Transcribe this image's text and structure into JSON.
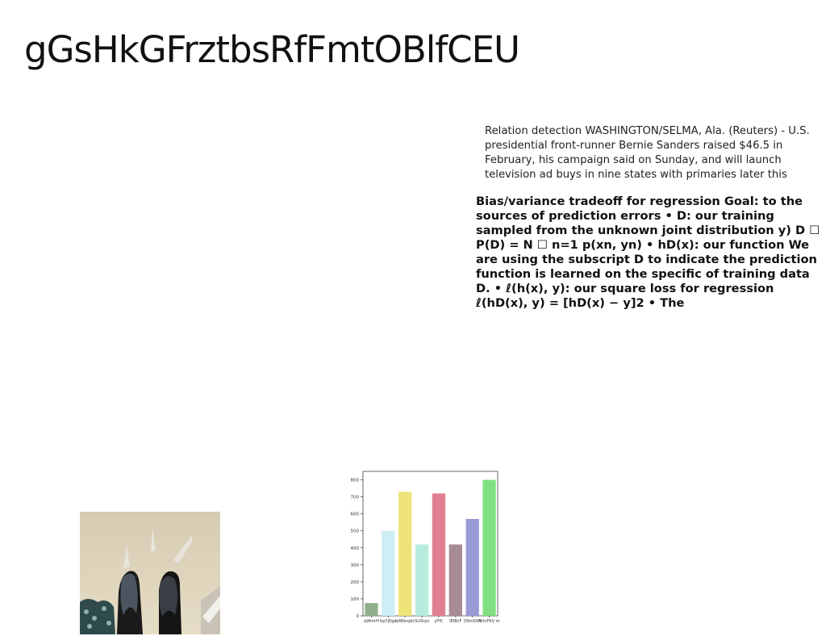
{
  "title": "gGsHkGFrztbsRfFmtOBlfCEU",
  "paragraph1": "Relation detection WASHINGTON/SELMA, Ala. (Reuters) - U.S. presidential front-runner Bernie Sanders raised $46.5 in February, his campaign said on Sunday, and will launch television ad buys in nine states with primaries later this",
  "paragraph2": "Bias/variance tradeoff for regression Goal: to the sources of prediction errors • D: our training sampled from the unknown joint distribution y) D ☐ P(D) = N ☐ n=1 p(xn, yn) • hD(x): our function We are using the subscript D to indicate the prediction function is learned on the specific of training data D. • ℓ(h(x), y): our square loss for regression ℓ(hD(x), y) = [hD(x) − y]2 • The",
  "chart_data": {
    "type": "bar",
    "categories": [
      "qWmrH",
      "bpYjEgd",
      "aWNvqdc",
      "SUSrpz",
      "yFfC",
      "lEIBcF",
      "OSmOiPl",
      "WmFKV m"
    ],
    "values": [
      75,
      500,
      730,
      420,
      720,
      420,
      570,
      800
    ],
    "colors": [
      "#8fb08a",
      "#cdeef5",
      "#eee47a",
      "#b6ecde",
      "#e0808e",
      "#a68a94",
      "#9a9ad6",
      "#80e080"
    ],
    "ylim": [
      0,
      850
    ],
    "yticks": [
      0,
      100,
      200,
      300,
      400,
      500,
      600,
      700,
      800
    ],
    "title": "",
    "xlabel": "",
    "ylabel": ""
  }
}
